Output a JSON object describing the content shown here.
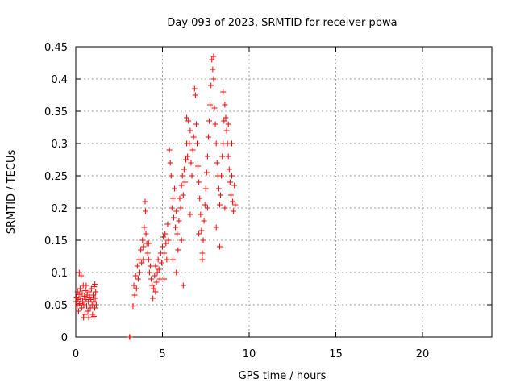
{
  "chart_data": {
    "type": "scatter",
    "title": "Day 093 of 2023, SRMTID for receiver pbwa",
    "xlabel": "GPS time / hours",
    "ylabel": "SRMTID / TECUs",
    "xlim": [
      0,
      24
    ],
    "ylim": [
      0,
      0.45
    ],
    "xticks": [
      0,
      5,
      10,
      15,
      20
    ],
    "yticks": [
      0,
      0.05,
      0.1,
      0.15,
      0.2,
      0.25,
      0.3,
      0.35,
      0.4,
      0.45
    ],
    "xtick_labels": [
      "0",
      "5",
      "10",
      "15",
      "20"
    ],
    "ytick_labels": [
      "0",
      "0.05",
      "0.1",
      "0.15",
      "0.2",
      "0.25",
      "0.3",
      "0.35",
      "0.4",
      "0.45"
    ],
    "grid": true,
    "marker": "+",
    "marker_color": "#ff0000",
    "series": [
      {
        "values": [
          [
            0.02,
            0.055
          ],
          [
            0.05,
            0.062
          ],
          [
            0.08,
            0.048
          ],
          [
            0.1,
            0.07
          ],
          [
            0.13,
            0.058
          ],
          [
            0.16,
            0.04
          ],
          [
            0.19,
            0.066
          ],
          [
            0.22,
            0.052
          ],
          [
            0.25,
            0.075
          ],
          [
            0.28,
            0.06
          ],
          [
            0.31,
            0.095
          ],
          [
            0.34,
            0.045
          ],
          [
            0.37,
            0.068
          ],
          [
            0.4,
            0.055
          ],
          [
            0.43,
            0.08
          ],
          [
            0.46,
            0.05
          ],
          [
            0.5,
            0.063
          ],
          [
            0.53,
            0.035
          ],
          [
            0.56,
            0.072
          ],
          [
            0.6,
            0.058
          ],
          [
            0.63,
            0.048
          ],
          [
            0.66,
            0.065
          ],
          [
            0.7,
            0.04
          ],
          [
            0.73,
            0.055
          ],
          [
            0.77,
            0.07
          ],
          [
            0.8,
            0.062
          ],
          [
            0.84,
            0.045
          ],
          [
            0.87,
            0.058
          ],
          [
            0.9,
            0.075
          ],
          [
            0.94,
            0.05
          ],
          [
            0.97,
            0.035
          ],
          [
            1.0,
            0.065
          ],
          [
            1.03,
            0.055
          ],
          [
            1.06,
            0.078
          ],
          [
            1.09,
            0.045
          ],
          [
            1.12,
            0.06
          ],
          [
            1.15,
            0.07
          ],
          [
            1.18,
            0.05
          ],
          [
            0.2,
            0.1
          ],
          [
            0.6,
            0.08
          ],
          [
            1.1,
            0.082
          ],
          [
            0.45,
            0.03
          ],
          [
            0.75,
            0.03
          ],
          [
            1.05,
            0.032
          ],
          [
            3.1,
            0.0
          ],
          [
            3.12,
            0.0
          ],
          [
            3.3,
            0.048
          ],
          [
            3.35,
            0.08
          ],
          [
            3.4,
            0.065
          ],
          [
            3.45,
            0.095
          ],
          [
            3.5,
            0.075
          ],
          [
            3.55,
            0.11
          ],
          [
            3.6,
            0.09
          ],
          [
            3.65,
            0.12
          ],
          [
            3.7,
            0.1
          ],
          [
            3.75,
            0.135
          ],
          [
            3.8,
            0.115
          ],
          [
            3.85,
            0.15
          ],
          [
            3.9,
            0.14
          ],
          [
            3.95,
            0.17
          ],
          [
            4.0,
            0.21
          ],
          [
            4.02,
            0.195
          ],
          [
            4.05,
            0.16
          ],
          [
            4.1,
            0.145
          ],
          [
            4.15,
            0.13
          ],
          [
            4.2,
            0.12
          ],
          [
            4.25,
            0.1
          ],
          [
            4.3,
            0.11
          ],
          [
            4.35,
            0.09
          ],
          [
            4.4,
            0.08
          ],
          [
            4.45,
            0.06
          ],
          [
            4.5,
            0.075
          ],
          [
            4.55,
            0.095
          ],
          [
            4.6,
            0.11
          ],
          [
            4.65,
            0.085
          ],
          [
            4.7,
            0.1
          ],
          [
            4.75,
            0.12
          ],
          [
            4.8,
            0.105
          ],
          [
            4.85,
            0.09
          ],
          [
            4.9,
            0.13
          ],
          [
            4.95,
            0.115
          ],
          [
            5.0,
            0.14
          ],
          [
            5.05,
            0.155
          ],
          [
            5.1,
            0.13
          ],
          [
            5.15,
            0.16
          ],
          [
            5.2,
            0.145
          ],
          [
            5.25,
            0.12
          ],
          [
            5.3,
            0.175
          ],
          [
            5.35,
            0.15
          ],
          [
            5.4,
            0.29
          ],
          [
            5.45,
            0.27
          ],
          [
            5.5,
            0.25
          ],
          [
            5.55,
            0.2
          ],
          [
            5.6,
            0.215
          ],
          [
            5.65,
            0.185
          ],
          [
            5.7,
            0.23
          ],
          [
            5.75,
            0.17
          ],
          [
            5.8,
            0.195
          ],
          [
            5.85,
            0.16
          ],
          [
            5.9,
            0.135
          ],
          [
            5.95,
            0.18
          ],
          [
            6.0,
            0.215
          ],
          [
            6.05,
            0.2
          ],
          [
            6.1,
            0.235
          ],
          [
            6.15,
            0.25
          ],
          [
            6.2,
            0.22
          ],
          [
            6.25,
            0.26
          ],
          [
            6.3,
            0.24
          ],
          [
            6.35,
            0.275
          ],
          [
            6.4,
            0.3
          ],
          [
            6.45,
            0.28
          ],
          [
            6.5,
            0.335
          ],
          [
            6.55,
            0.3
          ],
          [
            6.6,
            0.32
          ],
          [
            6.65,
            0.27
          ],
          [
            6.7,
            0.25
          ],
          [
            6.75,
            0.29
          ],
          [
            6.8,
            0.31
          ],
          [
            6.85,
            0.385
          ],
          [
            6.9,
            0.375
          ],
          [
            6.95,
            0.33
          ],
          [
            7.0,
            0.3
          ],
          [
            7.05,
            0.265
          ],
          [
            7.1,
            0.24
          ],
          [
            7.15,
            0.215
          ],
          [
            7.2,
            0.19
          ],
          [
            7.25,
            0.165
          ],
          [
            7.3,
            0.13
          ],
          [
            7.35,
            0.15
          ],
          [
            7.4,
            0.18
          ],
          [
            7.45,
            0.205
          ],
          [
            7.5,
            0.23
          ],
          [
            7.55,
            0.255
          ],
          [
            7.6,
            0.28
          ],
          [
            7.65,
            0.31
          ],
          [
            7.7,
            0.335
          ],
          [
            7.75,
            0.36
          ],
          [
            7.8,
            0.39
          ],
          [
            7.85,
            0.43
          ],
          [
            7.9,
            0.415
          ],
          [
            7.95,
            0.4
          ],
          [
            8.0,
            0.355
          ],
          [
            8.05,
            0.33
          ],
          [
            8.1,
            0.3
          ],
          [
            8.15,
            0.27
          ],
          [
            8.2,
            0.25
          ],
          [
            8.25,
            0.23
          ],
          [
            8.3,
            0.205
          ],
          [
            8.35,
            0.22
          ],
          [
            8.4,
            0.25
          ],
          [
            8.45,
            0.28
          ],
          [
            8.5,
            0.3
          ],
          [
            8.55,
            0.335
          ],
          [
            8.6,
            0.36
          ],
          [
            8.65,
            0.34
          ],
          [
            8.7,
            0.32
          ],
          [
            8.75,
            0.3
          ],
          [
            8.8,
            0.28
          ],
          [
            8.85,
            0.26
          ],
          [
            8.9,
            0.24
          ],
          [
            8.95,
            0.22
          ],
          [
            9.0,
            0.25
          ],
          [
            9.05,
            0.21
          ],
          [
            9.1,
            0.195
          ],
          [
            9.15,
            0.235
          ],
          [
            9.2,
            0.205
          ],
          [
            3.9,
            0.12
          ],
          [
            4.2,
            0.145
          ],
          [
            4.6,
            0.07
          ],
          [
            5.1,
            0.09
          ],
          [
            5.6,
            0.12
          ],
          [
            6.1,
            0.15
          ],
          [
            6.6,
            0.19
          ],
          [
            7.1,
            0.16
          ],
          [
            7.6,
            0.2
          ],
          [
            8.1,
            0.17
          ],
          [
            8.6,
            0.2
          ],
          [
            9.0,
            0.3
          ],
          [
            6.2,
            0.08
          ],
          [
            5.8,
            0.1
          ],
          [
            7.3,
            0.12
          ],
          [
            8.3,
            0.14
          ],
          [
            8.5,
            0.38
          ],
          [
            7.95,
            0.435
          ],
          [
            6.4,
            0.34
          ],
          [
            8.8,
            0.33
          ]
        ]
      }
    ]
  }
}
